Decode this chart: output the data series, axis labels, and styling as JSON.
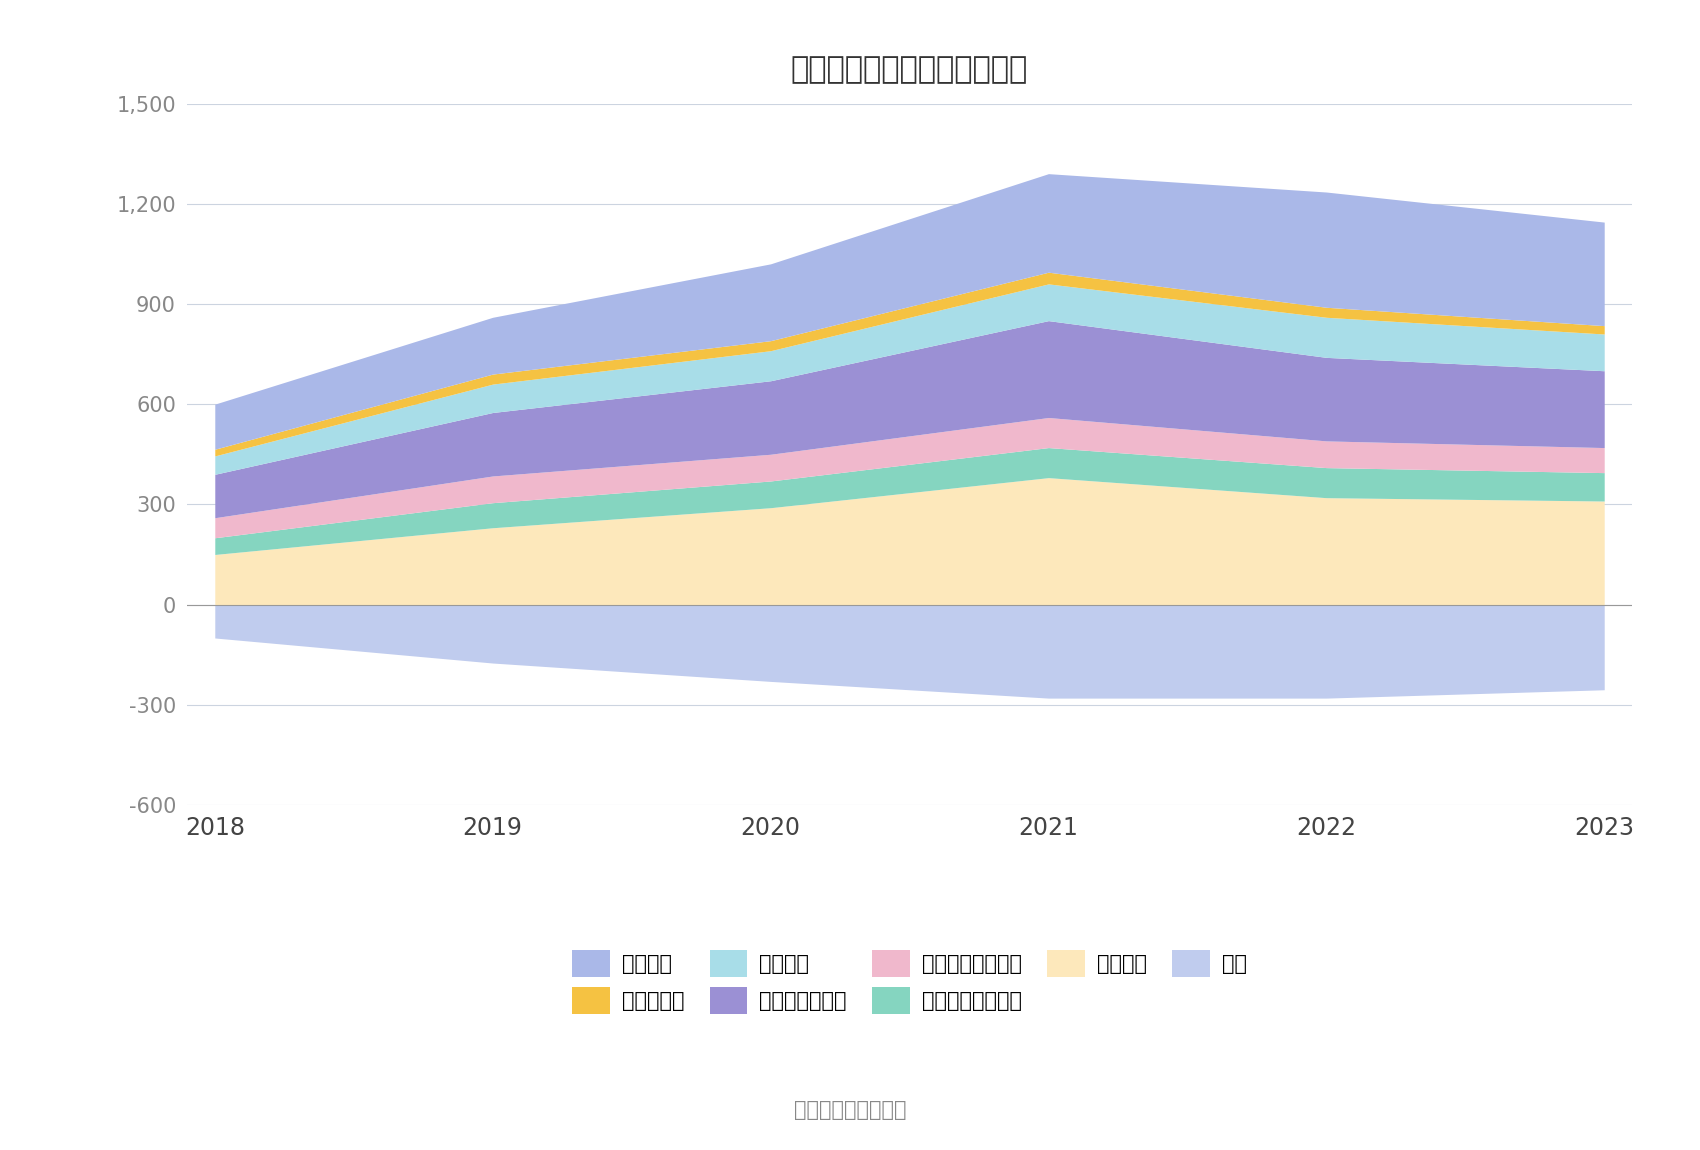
{
  "title": "历年主要资产堆积图（亿元）",
  "years": [
    2018,
    2019,
    2020,
    2021,
    2022,
    2023
  ],
  "series": {
    "金融投资": [
      150,
      230,
      290,
      380,
      320,
      310
    ],
    "其他债权投资合计": [
      50,
      75,
      80,
      90,
      90,
      85
    ],
    "买入返售金融资产": [
      60,
      80,
      80,
      90,
      80,
      75
    ],
    "交易性金融资产": [
      130,
      190,
      220,
      290,
      250,
      230
    ],
    "融出资金": [
      55,
      85,
      90,
      110,
      120,
      110
    ],
    "结算备付金": [
      20,
      30,
      30,
      35,
      30,
      25
    ],
    "货币资金": [
      135,
      170,
      230,
      295,
      345,
      310
    ],
    "其它": [
      -100,
      -175,
      -230,
      -280,
      -280,
      -255
    ]
  },
  "colors": {
    "金融投资": "#fde8bb",
    "其他债权投资合计": "#85d5c0",
    "买入返售金融资产": "#f0b8cc",
    "交易性金融资产": "#9b90d4",
    "融出资金": "#a8dde8",
    "结算备付金": "#f5c242",
    "货币资金": "#aab8e8",
    "其它": "#c0ccee"
  },
  "ylim": [
    -600,
    1500
  ],
  "yticks": [
    -600,
    -300,
    0,
    300,
    600,
    900,
    1200,
    1500
  ],
  "source_text": "数据来源：恒生聚源",
  "background_color": "#ffffff",
  "grid_color": "#ccd4e0"
}
